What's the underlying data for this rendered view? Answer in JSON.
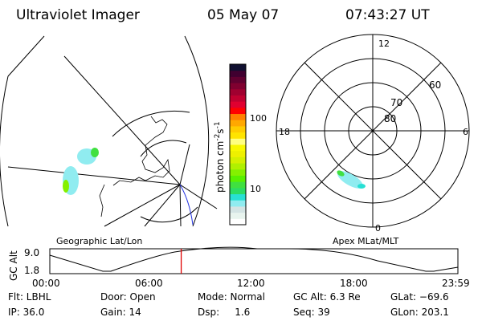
{
  "header": {
    "instrument": "Ultraviolet Imager",
    "date": "05 May 07",
    "time": "07:43:27 UT"
  },
  "colorbar": {
    "label": "photon cm",
    "exp1": "-2",
    "s": "s",
    "exp2": "-1",
    "ticks": [
      "100",
      "10"
    ],
    "colors": [
      "#ffffff",
      "#e8f4ee",
      "#d4e4e4",
      "#90ecf0",
      "#28e0d4",
      "#2cdc64",
      "#40e040",
      "#58f000",
      "#84f000",
      "#b0f000",
      "#d4f000",
      "#eef000",
      "#f8f800",
      "#ffff80",
      "#ffe400",
      "#ffcc00",
      "#ffa800",
      "#ff8000",
      "#ff0000",
      "#e00030",
      "#c00030",
      "#a00030",
      "#800030",
      "#600030",
      "#400030",
      "#101030"
    ]
  },
  "polar": {
    "mlt_labels": {
      "top": "12",
      "left": "18",
      "right": "6",
      "bottom": "0"
    },
    "lat_labels": [
      "80",
      "70",
      "60"
    ]
  },
  "maps": {
    "left_title": "Geographic Lat/Lon",
    "right_title": "Apex MLat/MLT"
  },
  "altitude_plot": {
    "ylabel": "GC Alt",
    "ymax": "9.0",
    "ymin": "1.8",
    "xticks": [
      "00:00",
      "06:00",
      "12:00",
      "18:00",
      "23:59"
    ],
    "current_time_fraction": 0.322
  },
  "info": {
    "flt": "Flt: LBHL",
    "ip": "IP: 36.0",
    "door": "Door: Open",
    "gain": "Gain: 14",
    "mode": "Mode: Normal",
    "dsp": "Dsp:     1.6",
    "gcalt": "GC Alt: 6.3 Re",
    "seq": "Seq: 39",
    "glat": "GLat: −69.6",
    "glon": "GLon: 203.1"
  }
}
